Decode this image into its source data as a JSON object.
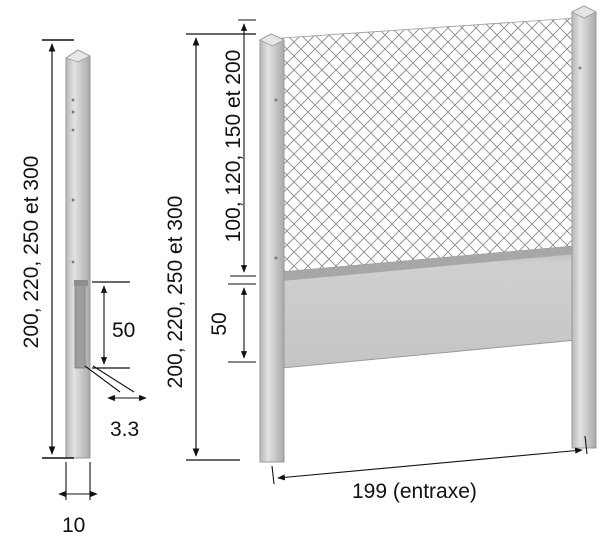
{
  "diagram": {
    "left_post": {
      "height_label": "200, 220, 250 et 300",
      "slot_height_label": "50",
      "slot_depth_label": "3.3",
      "width_label": "10"
    },
    "fence": {
      "post_height_label": "200, 220, 250 et 300",
      "mesh_height_label": "100, 120, 150 et 200",
      "plate_height_label": "50",
      "spacing_label": "199 (entraxe)"
    },
    "colors": {
      "post_fill": "#d2d2d2",
      "post_shadow": "#a9a9a9",
      "plate_fill": "#c9c9c9",
      "mesh_line": "#8a8a8a",
      "dimension_line": "#111111"
    }
  }
}
